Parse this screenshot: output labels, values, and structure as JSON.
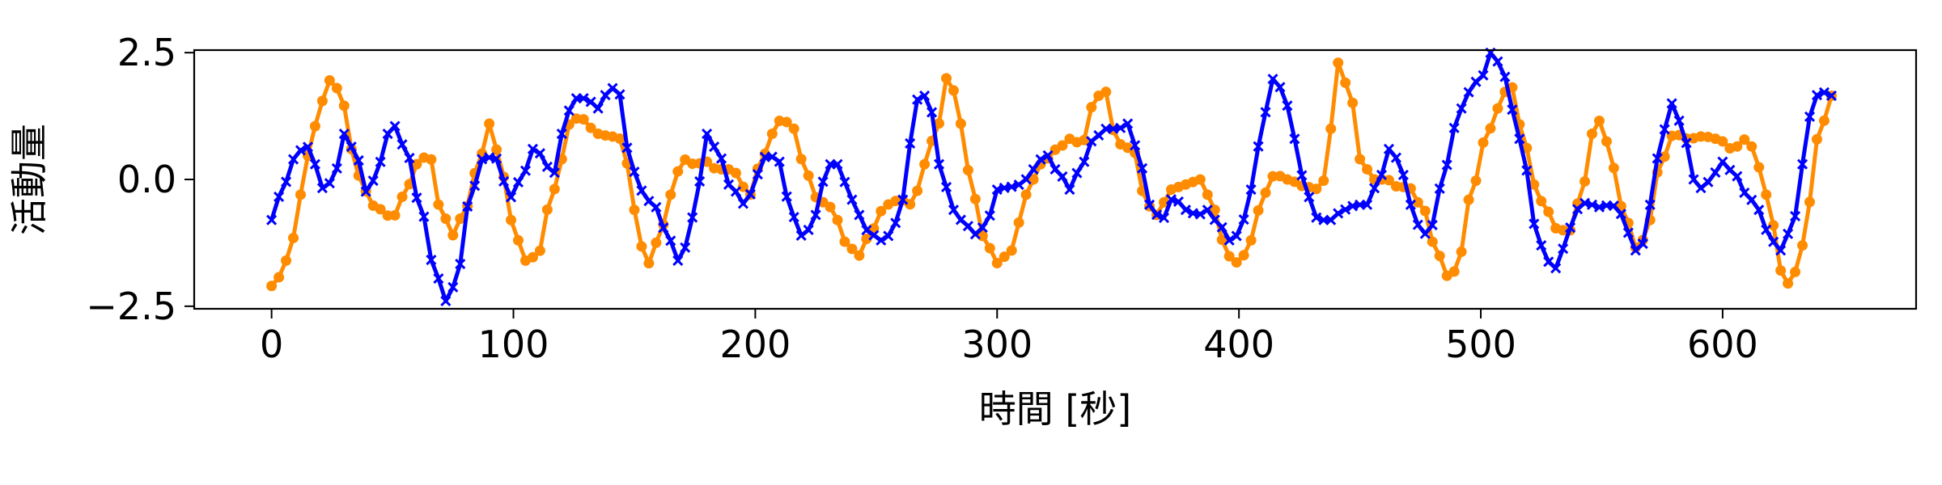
{
  "chart_data": {
    "type": "line",
    "title": "",
    "xlabel": "時間 [秒]",
    "ylabel": "活動量",
    "xlim": [
      -32,
      680
    ],
    "ylim": [
      -2.55,
      2.55
    ],
    "x_ticks": [
      0,
      100,
      200,
      300,
      400,
      500,
      600
    ],
    "x_tick_labels": [
      "0",
      "100",
      "200",
      "300",
      "400",
      "500",
      "600"
    ],
    "y_ticks": [
      -2.5,
      0.0,
      2.5
    ],
    "y_tick_labels": [
      "−2.5",
      "0.0",
      "2.5"
    ],
    "grid": false,
    "legend": "none",
    "sample_step": 3,
    "series": [
      {
        "color": "#ff8c00",
        "marker": "circle",
        "keypoints": [
          [
            0,
            -2.1
          ],
          [
            4,
            -1.9
          ],
          [
            8,
            -1.3
          ],
          [
            12,
            -0.3
          ],
          [
            16,
            0.6
          ],
          [
            20,
            1.5
          ],
          [
            25,
            2.0
          ],
          [
            29,
            1.6
          ],
          [
            33,
            0.6
          ],
          [
            38,
            -0.2
          ],
          [
            43,
            -0.55
          ],
          [
            50,
            -0.75
          ],
          [
            55,
            -0.3
          ],
          [
            60,
            0.3
          ],
          [
            65,
            0.5
          ],
          [
            70,
            -0.6
          ],
          [
            75,
            -1.1
          ],
          [
            80,
            -0.6
          ],
          [
            85,
            0.2
          ],
          [
            90,
            1.1
          ],
          [
            94,
            0.5
          ],
          [
            99,
            -0.8
          ],
          [
            105,
            -1.6
          ],
          [
            110,
            -1.5
          ],
          [
            115,
            -0.5
          ],
          [
            120,
            0.4
          ],
          [
            124,
            1.2
          ],
          [
            128,
            1.2
          ],
          [
            135,
            0.9
          ],
          [
            140,
            0.85
          ],
          [
            145,
            0.8
          ],
          [
            150,
            -0.6
          ],
          [
            155,
            -1.7
          ],
          [
            160,
            -1.2
          ],
          [
            165,
            -0.3
          ],
          [
            170,
            0.4
          ],
          [
            175,
            0.3
          ],
          [
            180,
            0.35
          ],
          [
            184,
            0.2
          ],
          [
            190,
            0.2
          ],
          [
            198,
            -0.3
          ],
          [
            202,
            0.3
          ],
          [
            207,
            0.9
          ],
          [
            211,
            1.2
          ],
          [
            216,
            1.0
          ],
          [
            220,
            0.3
          ],
          [
            225,
            -0.35
          ],
          [
            230,
            -0.5
          ],
          [
            234,
            -0.8
          ],
          [
            238,
            -1.3
          ],
          [
            243,
            -1.5
          ],
          [
            248,
            -1.0
          ],
          [
            254,
            -0.5
          ],
          [
            260,
            -0.4
          ],
          [
            265,
            -0.5
          ],
          [
            270,
            0.3
          ],
          [
            275,
            1.0
          ],
          [
            280,
            2.1
          ],
          [
            285,
            1.1
          ],
          [
            290,
            -0.3
          ],
          [
            295,
            -1.2
          ],
          [
            300,
            -1.65
          ],
          [
            306,
            -1.4
          ],
          [
            312,
            -0.3
          ],
          [
            318,
            0.3
          ],
          [
            325,
            0.6
          ],
          [
            330,
            0.8
          ],
          [
            335,
            0.7
          ],
          [
            340,
            1.5
          ],
          [
            344,
            1.8
          ],
          [
            350,
            0.7
          ],
          [
            356,
            0.6
          ],
          [
            362,
            -0.5
          ],
          [
            366,
            -0.7
          ],
          [
            372,
            -0.2
          ],
          [
            378,
            -0.1
          ],
          [
            384,
            0.0
          ],
          [
            390,
            -0.6
          ],
          [
            395,
            -1.5
          ],
          [
            400,
            -1.65
          ],
          [
            405,
            -1.2
          ],
          [
            410,
            -0.3
          ],
          [
            415,
            0.1
          ],
          [
            420,
            0.0
          ],
          [
            428,
            -0.15
          ],
          [
            434,
            -0.2
          ],
          [
            438,
            1.0
          ],
          [
            441,
            2.3
          ],
          [
            446,
            1.7
          ],
          [
            450,
            0.4
          ],
          [
            456,
            0.0
          ],
          [
            461,
            0.0
          ],
          [
            466,
            -0.15
          ],
          [
            470,
            -0.15
          ],
          [
            476,
            -0.55
          ],
          [
            481,
            -1.3
          ],
          [
            486,
            -1.9
          ],
          [
            490,
            -1.8
          ],
          [
            496,
            -0.3
          ],
          [
            502,
            0.8
          ],
          [
            507,
            1.4
          ],
          [
            512,
            1.9
          ],
          [
            517,
            1.0
          ],
          [
            522,
            -0.1
          ],
          [
            527,
            -0.6
          ],
          [
            532,
            -1.0
          ],
          [
            537,
            -1.0
          ],
          [
            542,
            -0.2
          ],
          [
            546,
            0.9
          ],
          [
            550,
            1.2
          ],
          [
            554,
            0.3
          ],
          [
            560,
            -0.8
          ],
          [
            565,
            -1.4
          ],
          [
            570,
            -0.8
          ],
          [
            574,
            0.3
          ],
          [
            580,
            0.9
          ],
          [
            586,
            0.8
          ],
          [
            592,
            0.85
          ],
          [
            598,
            0.8
          ],
          [
            604,
            0.6
          ],
          [
            610,
            0.8
          ],
          [
            616,
            0.2
          ],
          [
            620,
            -0.8
          ],
          [
            625,
            -1.9
          ],
          [
            628,
            -2.1
          ],
          [
            633,
            -1.3
          ],
          [
            640,
            0.9
          ],
          [
            645,
            1.65
          ]
        ]
      },
      {
        "color": "#0000ff",
        "marker": "x",
        "keypoints": [
          [
            0,
            -0.8
          ],
          [
            5,
            -0.1
          ],
          [
            10,
            0.45
          ],
          [
            14,
            0.7
          ],
          [
            18,
            0.3
          ],
          [
            22,
            -0.25
          ],
          [
            26,
            0.1
          ],
          [
            30,
            0.9
          ],
          [
            34,
            0.6
          ],
          [
            40,
            -0.3
          ],
          [
            44,
            0.25
          ],
          [
            48,
            0.9
          ],
          [
            51,
            1.05
          ],
          [
            56,
            0.5
          ],
          [
            62,
            -0.65
          ],
          [
            68,
            -1.9
          ],
          [
            73,
            -2.45
          ],
          [
            77,
            -1.8
          ],
          [
            82,
            -0.4
          ],
          [
            87,
            0.4
          ],
          [
            92,
            0.45
          ],
          [
            99,
            -0.35
          ],
          [
            104,
            0.1
          ],
          [
            108,
            0.6
          ],
          [
            112,
            0.5
          ],
          [
            116,
            0.0
          ],
          [
            120,
            0.9
          ],
          [
            125,
            1.6
          ],
          [
            130,
            1.6
          ],
          [
            135,
            1.4
          ],
          [
            140,
            1.8
          ],
          [
            143,
            1.8
          ],
          [
            148,
            0.5
          ],
          [
            152,
            -0.2
          ],
          [
            158,
            -0.5
          ],
          [
            163,
            -1.0
          ],
          [
            168,
            -1.6
          ],
          [
            172,
            -1.3
          ],
          [
            176,
            -0.2
          ],
          [
            180,
            0.9
          ],
          [
            184,
            0.6
          ],
          [
            190,
            -0.15
          ],
          [
            196,
            -0.5
          ],
          [
            201,
            0.1
          ],
          [
            205,
            0.5
          ],
          [
            210,
            0.35
          ],
          [
            215,
            -0.7
          ],
          [
            220,
            -1.15
          ],
          [
            225,
            -0.7
          ],
          [
            230,
            0.3
          ],
          [
            234,
            0.3
          ],
          [
            240,
            -0.4
          ],
          [
            246,
            -1.0
          ],
          [
            252,
            -1.2
          ],
          [
            256,
            -1.1
          ],
          [
            261,
            -0.4
          ],
          [
            265,
            0.9
          ],
          [
            268,
            1.8
          ],
          [
            272,
            1.5
          ],
          [
            276,
            0.3
          ],
          [
            282,
            -0.6
          ],
          [
            287,
            -0.9
          ],
          [
            292,
            -1.1
          ],
          [
            296,
            -0.8
          ],
          [
            300,
            -0.2
          ],
          [
            305,
            -0.15
          ],
          [
            310,
            -0.1
          ],
          [
            315,
            0.2
          ],
          [
            320,
            0.5
          ],
          [
            326,
            0.1
          ],
          [
            330,
            -0.2
          ],
          [
            335,
            0.3
          ],
          [
            340,
            0.8
          ],
          [
            345,
            1.0
          ],
          [
            350,
            1.0
          ],
          [
            354,
            1.1
          ],
          [
            358,
            0.6
          ],
          [
            363,
            -0.5
          ],
          [
            368,
            -0.8
          ],
          [
            373,
            -0.35
          ],
          [
            378,
            -0.6
          ],
          [
            383,
            -0.7
          ],
          [
            387,
            -0.6
          ],
          [
            392,
            -0.9
          ],
          [
            396,
            -1.2
          ],
          [
            400,
            -1.1
          ],
          [
            405,
            -0.2
          ],
          [
            410,
            1.1
          ],
          [
            413,
            2.0
          ],
          [
            418,
            1.8
          ],
          [
            423,
            0.8
          ],
          [
            428,
            -0.3
          ],
          [
            433,
            -0.8
          ],
          [
            438,
            -0.8
          ],
          [
            443,
            -0.6
          ],
          [
            449,
            -0.5
          ],
          [
            453,
            -0.5
          ],
          [
            458,
            0.0
          ],
          [
            462,
            0.6
          ],
          [
            466,
            0.4
          ],
          [
            471,
            -0.5
          ],
          [
            476,
            -1.1
          ],
          [
            480,
            -0.9
          ],
          [
            485,
            0.2
          ],
          [
            490,
            1.1
          ],
          [
            494,
            1.7
          ],
          [
            500,
            2.0
          ],
          [
            505,
            2.55
          ],
          [
            509,
            2.1
          ],
          [
            514,
            1.3
          ],
          [
            518,
            0.3
          ],
          [
            523,
            -1.0
          ],
          [
            527,
            -1.6
          ],
          [
            531,
            -1.75
          ],
          [
            535,
            -1.3
          ],
          [
            539,
            -0.6
          ],
          [
            544,
            -0.45
          ],
          [
            548,
            -0.55
          ],
          [
            554,
            -0.5
          ],
          [
            559,
            -0.7
          ],
          [
            563,
            -1.4
          ],
          [
            566,
            -1.4
          ],
          [
            570,
            -0.5
          ],
          [
            575,
            0.9
          ],
          [
            579,
            1.5
          ],
          [
            583,
            1.1
          ],
          [
            588,
            0.0
          ],
          [
            592,
            -0.2
          ],
          [
            596,
            0.1
          ],
          [
            600,
            0.35
          ],
          [
            605,
            0.1
          ],
          [
            610,
            -0.3
          ],
          [
            615,
            -0.6
          ],
          [
            620,
            -1.2
          ],
          [
            624,
            -1.4
          ],
          [
            629,
            -0.9
          ],
          [
            633,
            0.3
          ],
          [
            637,
            1.4
          ],
          [
            640,
            1.75
          ],
          [
            645,
            1.65
          ]
        ]
      }
    ]
  }
}
